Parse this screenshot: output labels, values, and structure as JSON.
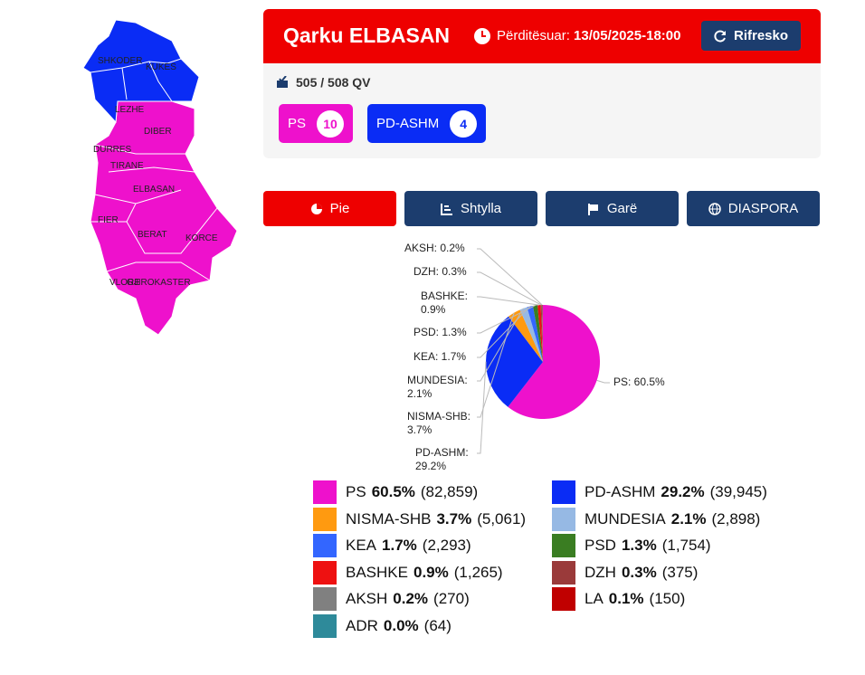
{
  "header": {
    "title": "Qarku ELBASAN",
    "updated_label": "Përditësuar:",
    "updated_at": "13/05/2025-18:00",
    "refresh_button": "Rifresko"
  },
  "stations": "505 / 508 QV",
  "seats": [
    {
      "party": "PS",
      "seats": "10",
      "color": "#ee11cc"
    },
    {
      "party": "PD-ASHM",
      "seats": "4",
      "color": "#0a2cf5"
    }
  ],
  "tabs": [
    "Pie",
    "Shtylla",
    "Garë",
    "DIASPORA"
  ],
  "map": {
    "regions": [
      "SHKODER",
      "KUKES",
      "LEZHE",
      "DIBER",
      "DURRES",
      "TIRANE",
      "ELBASAN",
      "FIER",
      "BERAT",
      "KORCE",
      "VLORE",
      "GJIROKASTER"
    ]
  },
  "chart_data": {
    "type": "pie",
    "categories": [
      "PS",
      "PD-ASHM",
      "NISMA-SHB",
      "MUNDESIA",
      "KEA",
      "PSD",
      "BASHKE",
      "DZH",
      "AKSH",
      "LA",
      "ADR"
    ],
    "values": [
      60.5,
      29.2,
      3.7,
      2.1,
      1.7,
      1.3,
      0.9,
      0.3,
      0.2,
      0.1,
      0.0
    ],
    "value_labels": [
      "60.5%",
      "29.2%",
      "3.7%",
      "2.1%",
      "1.7%",
      "1.3%",
      "0.9%",
      "0.3%",
      "0.2%",
      "0.1%",
      "0.0%"
    ],
    "count_labels": [
      "(82,859)",
      "(39,945)",
      "(5,061)",
      "(2,898)",
      "(2,293)",
      "(1,754)",
      "(1,265)",
      "(375)",
      "(270)",
      "(150)",
      "(64)"
    ],
    "colors": [
      "#ee11cc",
      "#0a2cf5",
      "#ff9a10",
      "#96b9e4",
      "#3366ff",
      "#3a7d22",
      "#ee1111",
      "#9a3a3a",
      "#808080",
      "#c00000",
      "#2e8a9a"
    ],
    "slice_labels": [
      "PS: 60.5%",
      "PD-ASHM: 29.2%",
      "NISMA-SHB: 3.7%",
      "MUNDESIA: 2.1%",
      "KEA: 1.7%",
      "PSD: 1.3%",
      "BASHKE: 0.9%",
      "DZH: 0.3%",
      "AKSH: 0.2%",
      null,
      null
    ]
  }
}
